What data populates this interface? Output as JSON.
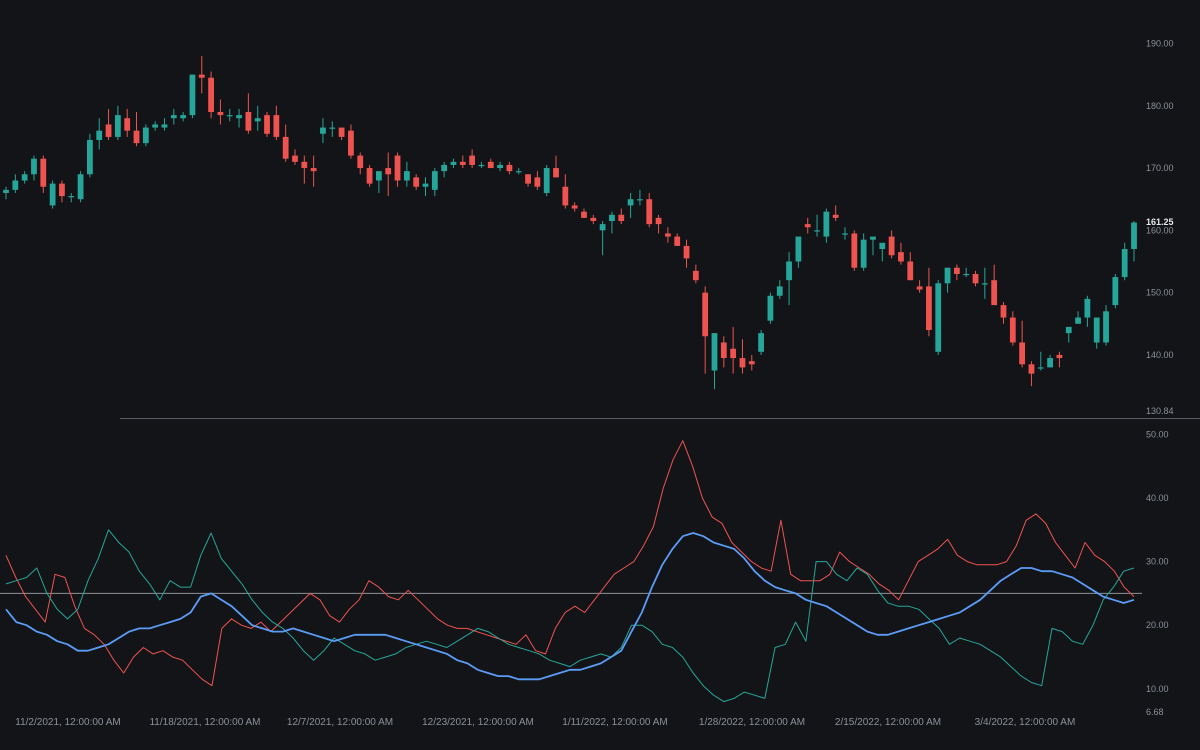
{
  "chart_data": [
    {
      "type": "candlestick",
      "panel": "price",
      "ylim": [
        130.84,
        192
      ],
      "yticks": [
        "190.00",
        "180.00",
        "170.00",
        "160.00",
        "150.00",
        "140.00"
      ],
      "axis_min_label": "130.84",
      "last_price_label": "161.25",
      "colors": {
        "up": "#26a69a",
        "down": "#ef5350"
      },
      "ohlc": [
        [
          166,
          167,
          165,
          166.5
        ],
        [
          166.5,
          169,
          166,
          168
        ],
        [
          168,
          169.5,
          167.5,
          169
        ],
        [
          169,
          172,
          168,
          171.5
        ],
        [
          171.5,
          172,
          166,
          167
        ],
        [
          164,
          168,
          163.5,
          167.5
        ],
        [
          167.5,
          168,
          164.5,
          165.5
        ],
        [
          165.5,
          166,
          164.5,
          165.5
        ],
        [
          165,
          169.5,
          164.5,
          169
        ],
        [
          169,
          175.5,
          168.5,
          174.5
        ],
        [
          174.5,
          178,
          173,
          176
        ],
        [
          177,
          179.5,
          174.5,
          175
        ],
        [
          175,
          180,
          174.5,
          178.5
        ],
        [
          178,
          179.5,
          175,
          176
        ],
        [
          176,
          179,
          173.5,
          174
        ],
        [
          174,
          177,
          173.5,
          176.5
        ],
        [
          176.5,
          177.5,
          176,
          177
        ],
        [
          176.5,
          178,
          176,
          177
        ],
        [
          178,
          179.5,
          177,
          178.5
        ],
        [
          178,
          179,
          177.5,
          178.5
        ],
        [
          178.5,
          185,
          178,
          185
        ],
        [
          185,
          188,
          182,
          184.5
        ],
        [
          184.5,
          185.5,
          178,
          179
        ],
        [
          179,
          181,
          177,
          178.5
        ],
        [
          178.5,
          179.5,
          177.5,
          178.5
        ],
        [
          178,
          179.5,
          176.5,
          178.5
        ],
        [
          179,
          182,
          175.5,
          176
        ],
        [
          177.5,
          180,
          176,
          178
        ],
        [
          178.5,
          179,
          175,
          175.5
        ],
        [
          178.5,
          180,
          174.5,
          175
        ],
        [
          175,
          177,
          171,
          171.5
        ],
        [
          172,
          173,
          170.5,
          171
        ],
        [
          171,
          172,
          167.5,
          170
        ],
        [
          170,
          172,
          167,
          169.5
        ],
        [
          175.5,
          178,
          174,
          176.5
        ],
        [
          176.5,
          177.5,
          175,
          176.5
        ],
        [
          176.5,
          176.5,
          174.5,
          175
        ],
        [
          176,
          177,
          171.5,
          172
        ],
        [
          172,
          172.5,
          169,
          170
        ],
        [
          170,
          170.5,
          167,
          167.5
        ],
        [
          168,
          169.5,
          166,
          169.5
        ],
        [
          170,
          172.5,
          165.5,
          169
        ],
        [
          172,
          172.5,
          167,
          168
        ],
        [
          168,
          171,
          167,
          169.5
        ],
        [
          168.5,
          169,
          166.5,
          167
        ],
        [
          167,
          168.5,
          165.5,
          167.5
        ],
        [
          166.5,
          170,
          165.5,
          169.5
        ],
        [
          169.5,
          171,
          168.5,
          170.5
        ],
        [
          170.5,
          171.5,
          170,
          171
        ],
        [
          171,
          172,
          170,
          170.5
        ],
        [
          172,
          173,
          170,
          170.5
        ],
        [
          170.5,
          171,
          170,
          170.5
        ],
        [
          171,
          171.5,
          170,
          170
        ],
        [
          170,
          171,
          169.5,
          170.5
        ],
        [
          170.5,
          171,
          169,
          169.5
        ],
        [
          169.5,
          170,
          169,
          169.5
        ],
        [
          169,
          169,
          167,
          167.5
        ],
        [
          168.5,
          169.5,
          166.5,
          167
        ],
        [
          166,
          170.5,
          165.5,
          170
        ],
        [
          170,
          172,
          168.5,
          168.5
        ],
        [
          167,
          169,
          163.5,
          164
        ],
        [
          164,
          164.5,
          163,
          163.5
        ],
        [
          163,
          163.5,
          162,
          162
        ],
        [
          162,
          162.5,
          161,
          161.5
        ],
        [
          160,
          161.5,
          156,
          161
        ],
        [
          161.5,
          163,
          159.5,
          162.5
        ],
        [
          162.5,
          163.5,
          161,
          161.5
        ],
        [
          164,
          166,
          162,
          165
        ],
        [
          165,
          166.5,
          164,
          165
        ],
        [
          165,
          166,
          160.5,
          161
        ],
        [
          162,
          162.5,
          159.5,
          161
        ],
        [
          159.5,
          160.5,
          158,
          159
        ],
        [
          159,
          159.5,
          157.5,
          157.5
        ],
        [
          157.5,
          158.5,
          154,
          155.5
        ],
        [
          153.5,
          154.5,
          151.5,
          152
        ],
        [
          150,
          151,
          137,
          143
        ],
        [
          137.5,
          143.5,
          134.5,
          143.5
        ],
        [
          142,
          143,
          138,
          139.5
        ],
        [
          141,
          144.5,
          137,
          139.5
        ],
        [
          139.5,
          142.5,
          137,
          138
        ],
        [
          139,
          140,
          137.5,
          138.5
        ],
        [
          140.5,
          144,
          140,
          143.5
        ],
        [
          145.5,
          150,
          145,
          149.5
        ],
        [
          149.5,
          152,
          149,
          151
        ],
        [
          152,
          156.5,
          148,
          155
        ],
        [
          155,
          159,
          154,
          159
        ],
        [
          161,
          162,
          159.5,
          160.5
        ],
        [
          160,
          162.5,
          159,
          160
        ],
        [
          159,
          163.5,
          158,
          163
        ],
        [
          162.5,
          164,
          161.5,
          162
        ],
        [
          159.5,
          160.5,
          158.5,
          159.5
        ],
        [
          159.5,
          160,
          153.5,
          154
        ],
        [
          154,
          159.5,
          153.5,
          158.5
        ],
        [
          158.5,
          159,
          156,
          159
        ],
        [
          157,
          158,
          155,
          158
        ],
        [
          159,
          160,
          155.5,
          156
        ],
        [
          156.5,
          158,
          154.5,
          155
        ],
        [
          155,
          156.5,
          152,
          152
        ],
        [
          151,
          152,
          150,
          150.5
        ],
        [
          151,
          154,
          143,
          144
        ],
        [
          140.5,
          152,
          140,
          151.5
        ],
        [
          151.5,
          154,
          150,
          154
        ],
        [
          154,
          154.5,
          152,
          153
        ],
        [
          153,
          154,
          152.5,
          153
        ],
        [
          153,
          153.5,
          151,
          151.5
        ],
        [
          151.5,
          154,
          149,
          151.5
        ],
        [
          152,
          154.5,
          148,
          148
        ],
        [
          148,
          148.5,
          145,
          146
        ],
        [
          146,
          147,
          141.5,
          142
        ],
        [
          142,
          145.5,
          138,
          138.5
        ],
        [
          138.5,
          139,
          135,
          137
        ],
        [
          138,
          140.5,
          137.5,
          138
        ],
        [
          138,
          140,
          138,
          139.5
        ],
        [
          140,
          140.5,
          138,
          139.5
        ],
        [
          143.5,
          144.5,
          142,
          144.5
        ],
        [
          145,
          147,
          145,
          146
        ],
        [
          146,
          149.5,
          144.5,
          149
        ],
        [
          142,
          146,
          141,
          146
        ],
        [
          142,
          148,
          141.5,
          147
        ],
        [
          148,
          153,
          147.5,
          152.5
        ],
        [
          152.5,
          158,
          152,
          157
        ],
        [
          157,
          161.5,
          155,
          161.25
        ]
      ]
    },
    {
      "type": "line",
      "panel": "indicator",
      "ylim": [
        6.68,
        51
      ],
      "yticks": [
        "50.00",
        "40.00",
        "30.00",
        "20.00",
        "10.00"
      ],
      "axis_min_label": "6.68",
      "level": 25,
      "x_tick_labels": [
        "11/2/2021, 12:00:00 AM",
        "11/18/2021, 12:00:00 AM",
        "12/7/2021, 12:00:00 AM",
        "12/23/2021, 12:00:00 AM",
        "1/11/2022, 12:00:00 AM",
        "1/28/2022, 12:00:00 AM",
        "2/15/2022, 12:00:00 AM",
        "3/4/2022, 12:00:00 AM"
      ],
      "series": [
        {
          "color": "#ef5350",
          "values": [
            31,
            27.5,
            24.5,
            22.5,
            20.5,
            28,
            27.5,
            23,
            19.5,
            18.5,
            17,
            14.5,
            12.5,
            15,
            16.5,
            15.5,
            16,
            15,
            14.5,
            13,
            11.5,
            10.5,
            19.5,
            21,
            20,
            19.5,
            20.5,
            19,
            20.5,
            22,
            23.5,
            25,
            24,
            21.5,
            20.5,
            22.5,
            24,
            27,
            26,
            24.5,
            24,
            25.5,
            24,
            22.5,
            21,
            20,
            19.5,
            19.5,
            19,
            18.5,
            18,
            17.5,
            17,
            18.5,
            16,
            15.5,
            19.5,
            22,
            23,
            22,
            24,
            26,
            28,
            29,
            30,
            32.5,
            35.5,
            41.5,
            46,
            49,
            45,
            40,
            37,
            36,
            33,
            31.5,
            30,
            29,
            28.5,
            36.5,
            28,
            27,
            27,
            27,
            28,
            31.5,
            30,
            29,
            28,
            26.5,
            25.5,
            24,
            27,
            30,
            31,
            32,
            33.5,
            31,
            30,
            29.5,
            29.5,
            29.5,
            30,
            32.5,
            36.5,
            37.5,
            36,
            33,
            31,
            29,
            33,
            31,
            30,
            28.5,
            26,
            24.5
          ]
        },
        {
          "color": "#26a69a",
          "values": [
            26.5,
            27,
            27.5,
            29,
            25,
            22.5,
            21,
            22.5,
            27,
            30.5,
            35,
            33,
            31.5,
            28.5,
            26.5,
            24,
            27,
            26,
            26,
            31,
            34.5,
            30.5,
            28.5,
            26.5,
            24,
            22,
            20.5,
            19.5,
            18,
            16,
            14.5,
            16,
            18,
            17,
            16,
            15.5,
            14.5,
            15,
            15.5,
            16.5,
            17,
            17.5,
            17,
            16.5,
            17.5,
            18.5,
            19.5,
            19,
            18,
            17,
            16.5,
            16,
            15.5,
            14.5,
            14,
            13.5,
            14.5,
            15,
            15.5,
            15,
            16.5,
            20,
            20,
            19,
            17,
            16.5,
            15,
            12.5,
            10.5,
            9,
            8,
            8.5,
            9.5,
            9,
            8.5,
            16.5,
            17,
            20.5,
            17.5,
            30,
            30,
            28,
            27,
            29,
            28,
            25.5,
            23.5,
            23,
            23,
            22.5,
            21,
            19.5,
            17,
            18,
            17.5,
            17,
            16,
            15,
            13.5,
            12,
            11,
            10.5,
            19.5,
            19,
            17.5,
            17,
            20,
            24,
            26,
            28.5,
            29
          ]
        },
        {
          "color": "#5b9cf6",
          "values": [
            22.5,
            20.5,
            20,
            19,
            18.5,
            17.5,
            17,
            16,
            16,
            16.5,
            17,
            18,
            19,
            19.5,
            19.5,
            20,
            20.5,
            21,
            22,
            24.5,
            25,
            24,
            23,
            21.5,
            20,
            19.5,
            19,
            19,
            19.5,
            19,
            18.5,
            18,
            17.5,
            18,
            18.5,
            18.5,
            18.5,
            18.5,
            18,
            17.5,
            17,
            16.5,
            16,
            15.5,
            14.5,
            14,
            13,
            12.5,
            12,
            12,
            11.5,
            11.5,
            11.5,
            12,
            12.5,
            13,
            13,
            13.5,
            14,
            15,
            16,
            19,
            22,
            26,
            29.5,
            32,
            34,
            34.5,
            34,
            33,
            32.5,
            32,
            30.5,
            28.5,
            27,
            26,
            25.5,
            25,
            24,
            23.5,
            23,
            22,
            21,
            20,
            19,
            18.5,
            18.5,
            19,
            19.5,
            20,
            20.5,
            21,
            21.5,
            22,
            23,
            24,
            25.5,
            27,
            28,
            29,
            29,
            28.5,
            28.5,
            28,
            27.5,
            26.5,
            25.5,
            24.5,
            24,
            23.5,
            24
          ]
        }
      ]
    }
  ]
}
